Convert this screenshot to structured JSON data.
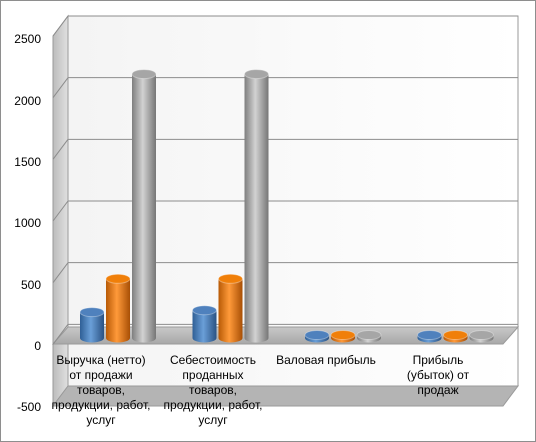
{
  "chart_data": {
    "type": "bar",
    "categories": [
      "Выручка (нетто) от продажи товаров, продукции, работ, услуг",
      "Себестоимость проданных товаров, продукции, работ, услуг",
      "Валовая прибыль",
      "Прибыль (убыток) от продаж"
    ],
    "series": [
      {
        "color": "#4f81bd",
        "values": [
          210,
          225,
          0,
          0
        ]
      },
      {
        "color": "#f07f09",
        "values": [
          480,
          480,
          0,
          0
        ]
      },
      {
        "color": "#a6a6a6",
        "values": [
          2140,
          2140,
          0,
          0
        ]
      }
    ],
    "ylim": [
      -500,
      2500
    ],
    "yticks": [
      "-500",
      "0",
      "500",
      "1000",
      "1500",
      "2000",
      "2500"
    ],
    "grid": true,
    "legend": "none",
    "style": "3d-cylinder"
  }
}
